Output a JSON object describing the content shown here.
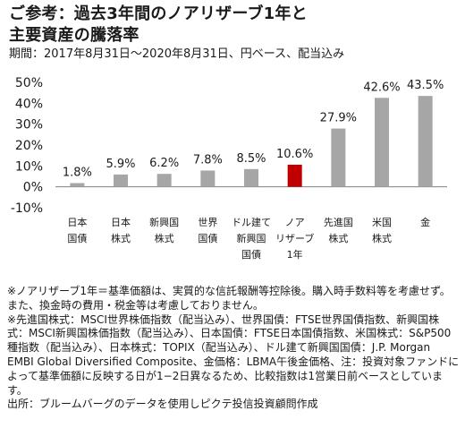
{
  "header": {
    "title_line1": "ご参考：過去3年間のノアリザーブ1年と",
    "title_line2": "主要資産の騰落率",
    "period": "期間：2017年8月31日～2020年8月31日、円ベース、配当込み"
  },
  "chart_data": {
    "type": "bar",
    "categories": [
      [
        "日本",
        "国債"
      ],
      [
        "日本",
        "株式"
      ],
      [
        "新興国",
        "株式"
      ],
      [
        "世界",
        "国債"
      ],
      [
        "ドル建て",
        "新興国",
        "国債"
      ],
      [
        "ノア",
        "リザーブ",
        "1年"
      ],
      [
        "先進国",
        "株式"
      ],
      [
        "米国",
        "株式"
      ],
      [
        "金"
      ]
    ],
    "values": [
      1.8,
      5.9,
      6.2,
      7.8,
      8.5,
      10.6,
      27.9,
      42.6,
      43.5
    ],
    "value_labels": [
      "1.8%",
      "5.9%",
      "6.2%",
      "7.8%",
      "8.5%",
      "10.6%",
      "27.9%",
      "42.6%",
      "43.5%"
    ],
    "highlight_index": 5,
    "ylim": [
      -10,
      50
    ],
    "yticks": [
      -10,
      0,
      10,
      20,
      30,
      40,
      50
    ],
    "ytick_labels": [
      "-10%",
      "0%",
      "10%",
      "20%",
      "30%",
      "40%",
      "50%"
    ],
    "grid": false,
    "colors": {
      "bar": "#a6a6a6",
      "highlight": "#c00000",
      "axis": "#808080"
    }
  },
  "notes": [
    "※ノアリザーブ1年＝基準価額は、実質的な信託報酬等控除後。購入時手数料等を考慮せず。また、換金時の費用・税金等は考慮しておりません。",
    "※先進国株式：MSCI世界株価指数（配当込み）、世界国債：FTSE世界国債指数、新興国株式：MSCI新興国株価指数（配当込み）、日本国債：FTSE日本国債指数、米国株式：S&P500種指数（配当込み）、日本株式：TOPIX（配当込み）、ドル建て新興国国債：J.P. Morgan EMBI Global Diversified Composite、金価格：LBMA午後金価格、注：投資対象ファンドによって基準価額に反映する日が1−2日異なるため、比較指数は1営業日前ベースとしています。",
    "出所：ブルームバーグのデータを使用しピクテ投信投資顧問作成"
  ]
}
